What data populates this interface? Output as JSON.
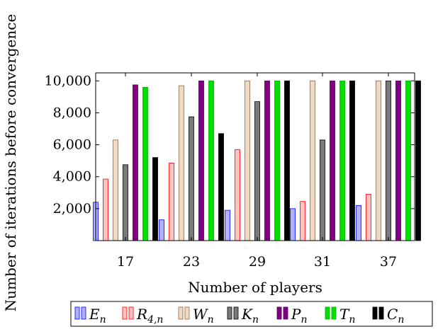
{
  "chart_data": {
    "type": "bar",
    "title": "",
    "xlabel": "Number of players",
    "ylabel": "Number of iterations before convergence",
    "categories": [
      "17",
      "23",
      "29",
      "31",
      "37"
    ],
    "ylim": [
      0,
      10500
    ],
    "yticks": [
      2000,
      4000,
      6000,
      8000,
      10000
    ],
    "ytick_labels": [
      "2,000",
      "4,000",
      "6,000",
      "8,000",
      "10,000"
    ],
    "grid": false,
    "legend_position": "bottom",
    "series": [
      {
        "name": "E_n",
        "base": "E",
        "sub": "n",
        "color": "#0000ff",
        "fill": "#b0b0ff",
        "values": [
          2400,
          1300,
          1900,
          2000,
          2200
        ]
      },
      {
        "name": "R_4,n",
        "base": "R",
        "sub": "4,n",
        "color": "#ff0000",
        "fill": "#ffc2c2",
        "values": [
          3850,
          4850,
          5700,
          2450,
          2900
        ]
      },
      {
        "name": "W_n",
        "base": "W",
        "sub": "n",
        "color": "#8a6a4a",
        "fill": "#efd9c2",
        "values": [
          6300,
          9700,
          10000,
          10000,
          10000
        ]
      },
      {
        "name": "K_n",
        "base": "K",
        "sub": "n",
        "color": "#000000",
        "fill": "#7a7a7a",
        "values": [
          4750,
          7750,
          8700,
          6300,
          10000
        ]
      },
      {
        "name": "P_n",
        "base": "P",
        "sub": "n",
        "color": "#4b0060",
        "fill": "#800080",
        "values": [
          9750,
          10000,
          10000,
          10000,
          10000
        ]
      },
      {
        "name": "T_n",
        "base": "T",
        "sub": "n",
        "color": "#00b000",
        "fill": "#00e000",
        "values": [
          9600,
          10000,
          10000,
          10000,
          10000
        ]
      },
      {
        "name": "C_n",
        "base": "C",
        "sub": "n",
        "color": "#000000",
        "fill": "#000000",
        "values": [
          5200,
          6700,
          10000,
          10000,
          10000
        ]
      }
    ]
  }
}
